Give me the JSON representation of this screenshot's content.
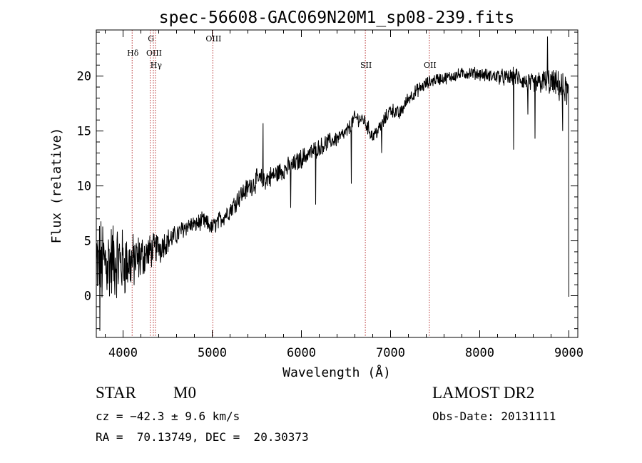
{
  "chart_data": {
    "type": "line",
    "title": "spec-56608-GAC069N20M1_sp08-239.fits",
    "xlabel": "Wavelength (Å)",
    "ylabel": "Flux (relative)",
    "xlim": [
      3700,
      9100
    ],
    "ylim": [
      -3.8,
      24.2
    ],
    "xticks": [
      4000,
      5000,
      6000,
      7000,
      8000,
      9000
    ],
    "yticks": [
      0,
      5,
      10,
      15,
      20
    ],
    "xtick_labels": [
      "4000",
      "5000",
      "6000",
      "7000",
      "8000",
      "9000"
    ],
    "ytick_labels": [
      "0",
      "5",
      "10",
      "15",
      "20"
    ],
    "grid": false,
    "line_color": "#000000",
    "marker_color": "#b22222",
    "spectrum_trend": [
      [
        3700,
        2.5
      ],
      [
        3800,
        3.0
      ],
      [
        3900,
        3.2
      ],
      [
        4000,
        3.0
      ],
      [
        4100,
        3.0
      ],
      [
        4200,
        3.5
      ],
      [
        4300,
        4.0
      ],
      [
        4400,
        4.5
      ],
      [
        4500,
        5.0
      ],
      [
        4600,
        5.5
      ],
      [
        4700,
        6.3
      ],
      [
        4800,
        6.5
      ],
      [
        4900,
        6.8
      ],
      [
        5000,
        6.2
      ],
      [
        5100,
        7.0
      ],
      [
        5200,
        7.8
      ],
      [
        5300,
        9.0
      ],
      [
        5400,
        9.8
      ],
      [
        5500,
        10.5
      ],
      [
        5600,
        10.6
      ],
      [
        5700,
        11.0
      ],
      [
        5800,
        11.5
      ],
      [
        5900,
        11.8
      ],
      [
        6000,
        12.5
      ],
      [
        6100,
        13.0
      ],
      [
        6200,
        13.5
      ],
      [
        6300,
        14.0
      ],
      [
        6400,
        14.3
      ],
      [
        6500,
        14.8
      ],
      [
        6600,
        16.2
      ],
      [
        6700,
        16.0
      ],
      [
        6800,
        14.5
      ],
      [
        6900,
        15.5
      ],
      [
        7000,
        17.0
      ],
      [
        7100,
        16.5
      ],
      [
        7200,
        18.0
      ],
      [
        7300,
        18.7
      ],
      [
        7400,
        19.3
      ],
      [
        7500,
        19.7
      ],
      [
        7600,
        19.8
      ],
      [
        7700,
        20.0
      ],
      [
        7800,
        20.2
      ],
      [
        7900,
        20.3
      ],
      [
        8000,
        20.2
      ],
      [
        8100,
        20.0
      ],
      [
        8200,
        20.0
      ],
      [
        8300,
        19.8
      ],
      [
        8400,
        20.0
      ],
      [
        8500,
        19.5
      ],
      [
        8600,
        19.2
      ],
      [
        8700,
        19.5
      ],
      [
        8800,
        19.4
      ],
      [
        8900,
        19.0
      ],
      [
        9000,
        18.5
      ]
    ],
    "spectrum_noise": [
      [
        3700,
        4.0
      ],
      [
        4000,
        2.8
      ],
      [
        4300,
        1.4
      ],
      [
        4600,
        0.8
      ],
      [
        5000,
        0.7
      ],
      [
        5500,
        0.9
      ],
      [
        6000,
        0.8
      ],
      [
        6500,
        0.6
      ],
      [
        7000,
        0.6
      ],
      [
        7500,
        0.5
      ],
      [
        8000,
        0.5
      ],
      [
        8500,
        0.8
      ],
      [
        9000,
        1.3
      ]
    ],
    "spectrum_features": [
      [
        3740,
        -3.2
      ],
      [
        4420,
        3.0
      ],
      [
        4810,
        6.5
      ],
      [
        5570,
        15.7
      ],
      [
        5880,
        8.0
      ],
      [
        6160,
        8.3
      ],
      [
        6560,
        10.2
      ],
      [
        6900,
        13.0
      ],
      [
        8380,
        13.3
      ],
      [
        8540,
        16.5
      ],
      [
        8620,
        14.3
      ],
      [
        8760,
        23.6
      ],
      [
        8930,
        15.0
      ],
      [
        9000,
        -0.1
      ]
    ],
    "lines": [
      {
        "label": "Hδ",
        "x": 4102,
        "row": 1
      },
      {
        "label": "G",
        "x": 4305,
        "row": 0
      },
      {
        "label": "OIII",
        "x": 4340,
        "row": 1
      },
      {
        "label": "Hγ",
        "x": 4363,
        "row": 2
      },
      {
        "label": "OIII",
        "x": 5007,
        "row": 0
      },
      {
        "label": "SII",
        "x": 6717,
        "row": 2
      },
      {
        "label": "OII",
        "x": 7435,
        "row": 2
      }
    ]
  },
  "info": {
    "class_label": "STAR",
    "subclass": "M0",
    "cz_text": "cz = −42.3 ± 9.6 km/s",
    "survey": "LAMOST DR2",
    "obs_date_text": "Obs-Date: 20131111",
    "coords_text": "RA =  70.13749, DEC =  20.30373"
  }
}
